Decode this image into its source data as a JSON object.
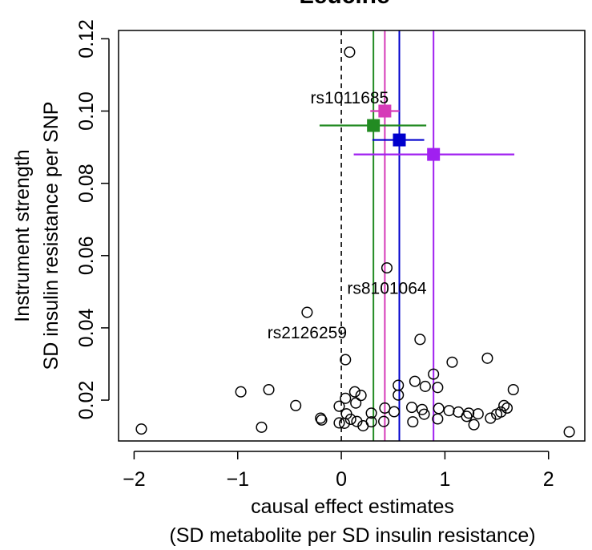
{
  "chart_data": {
    "type": "scatter",
    "title": "Leucine",
    "xlabel": [
      "causal effect estimates",
      "(SD metabolite per SD insulin resistance)"
    ],
    "ylabel": [
      "Instrument strength",
      "SD insulin resistance per SNP"
    ],
    "xlim": [
      -2.15,
      2.35
    ],
    "ylim": [
      0.0087,
      0.1223
    ],
    "x_ticks": [
      -2,
      -1,
      0,
      1,
      2
    ],
    "x_tick_labels": [
      "−2",
      "−1",
      "0",
      "1",
      "2"
    ],
    "y_ticks": [
      0.02,
      0.04,
      0.06,
      0.08,
      0.1,
      0.12
    ],
    "y_tick_labels": [
      "0.02",
      "0.04",
      "0.06",
      "0.08",
      "0.10",
      "0.12"
    ],
    "grid": false,
    "legend": "none",
    "reference_line": {
      "x": 0,
      "style": "dashed",
      "color": "#000000"
    },
    "snp_points": [
      {
        "x": 0.08,
        "y": 0.1163
      },
      {
        "x": 0.44,
        "y": 0.0566
      },
      {
        "x": -0.33,
        "y": 0.0443
      },
      {
        "x": 0.04,
        "y": 0.0312
      },
      {
        "x": 0.76,
        "y": 0.0368
      },
      {
        "x": 1.07,
        "y": 0.0305
      },
      {
        "x": 1.41,
        "y": 0.0316
      },
      {
        "x": 0.89,
        "y": 0.0272
      },
      {
        "x": 0.71,
        "y": 0.0252
      },
      {
        "x": 0.81,
        "y": 0.0238
      },
      {
        "x": 0.93,
        "y": 0.0235
      },
      {
        "x": 0.55,
        "y": 0.0241
      },
      {
        "x": 0.55,
        "y": 0.0214
      },
      {
        "x": -0.97,
        "y": 0.0223
      },
      {
        "x": -0.7,
        "y": 0.0229
      },
      {
        "x": 0.13,
        "y": 0.0223
      },
      {
        "x": 0.19,
        "y": 0.0213
      },
      {
        "x": 0.04,
        "y": 0.0205
      },
      {
        "x": 1.66,
        "y": 0.0229
      },
      {
        "x": -0.44,
        "y": 0.0185
      },
      {
        "x": 0.14,
        "y": 0.0192
      },
      {
        "x": 0.42,
        "y": 0.0178
      },
      {
        "x": 0.68,
        "y": 0.018
      },
      {
        "x": 0.78,
        "y": 0.0174
      },
      {
        "x": 0.94,
        "y": 0.0177
      },
      {
        "x": 1.04,
        "y": 0.0171
      },
      {
        "x": 1.13,
        "y": 0.0167
      },
      {
        "x": 1.23,
        "y": 0.0164
      },
      {
        "x": 1.57,
        "y": 0.0185
      },
      {
        "x": 1.6,
        "y": 0.0178
      },
      {
        "x": -0.02,
        "y": 0.0183
      },
      {
        "x": 0.05,
        "y": 0.0162
      },
      {
        "x": 0.29,
        "y": 0.0164
      },
      {
        "x": 0.51,
        "y": 0.0168
      },
      {
        "x": 0.8,
        "y": 0.0161
      },
      {
        "x": 1.21,
        "y": 0.0155
      },
      {
        "x": 1.32,
        "y": 0.0162
      },
      {
        "x": 1.5,
        "y": 0.0161
      },
      {
        "x": 1.54,
        "y": 0.0167
      },
      {
        "x": -0.2,
        "y": 0.015
      },
      {
        "x": -0.19,
        "y": 0.0145
      },
      {
        "x": 0.09,
        "y": 0.0147
      },
      {
        "x": 0.15,
        "y": 0.0141
      },
      {
        "x": 0.29,
        "y": 0.014
      },
      {
        "x": 0.41,
        "y": 0.0141
      },
      {
        "x": 0.69,
        "y": 0.014
      },
      {
        "x": 0.93,
        "y": 0.0148
      },
      {
        "x": 1.28,
        "y": 0.0132
      },
      {
        "x": 1.44,
        "y": 0.015
      },
      {
        "x": -0.02,
        "y": 0.0137
      },
      {
        "x": 0.03,
        "y": 0.0136
      },
      {
        "x": 0.21,
        "y": 0.0129
      },
      {
        "x": -0.77,
        "y": 0.0125
      },
      {
        "x": -1.93,
        "y": 0.012
      },
      {
        "x": 2.2,
        "y": 0.0112
      }
    ],
    "annotations": [
      {
        "text": "rs1011685",
        "x": 0.08,
        "y": 0.1033
      },
      {
        "text": "rs8101064",
        "x": 0.44,
        "y": 0.0506
      },
      {
        "text": "rs2126259",
        "x": -0.33,
        "y": 0.0383
      }
    ],
    "estimates": [
      {
        "color": "#d63ab8",
        "x": 0.42,
        "y": 0.1,
        "ci": [
          0.28,
          0.56
        ]
      },
      {
        "color": "#228b22",
        "x": 0.31,
        "y": 0.096,
        "ci": [
          -0.21,
          0.82
        ]
      },
      {
        "color": "#0000cd",
        "x": 0.56,
        "y": 0.092,
        "ci": [
          0.3,
          0.8
        ]
      },
      {
        "color": "#a020f0",
        "x": 0.89,
        "y": 0.088,
        "ci": [
          0.12,
          1.67
        ]
      }
    ]
  }
}
